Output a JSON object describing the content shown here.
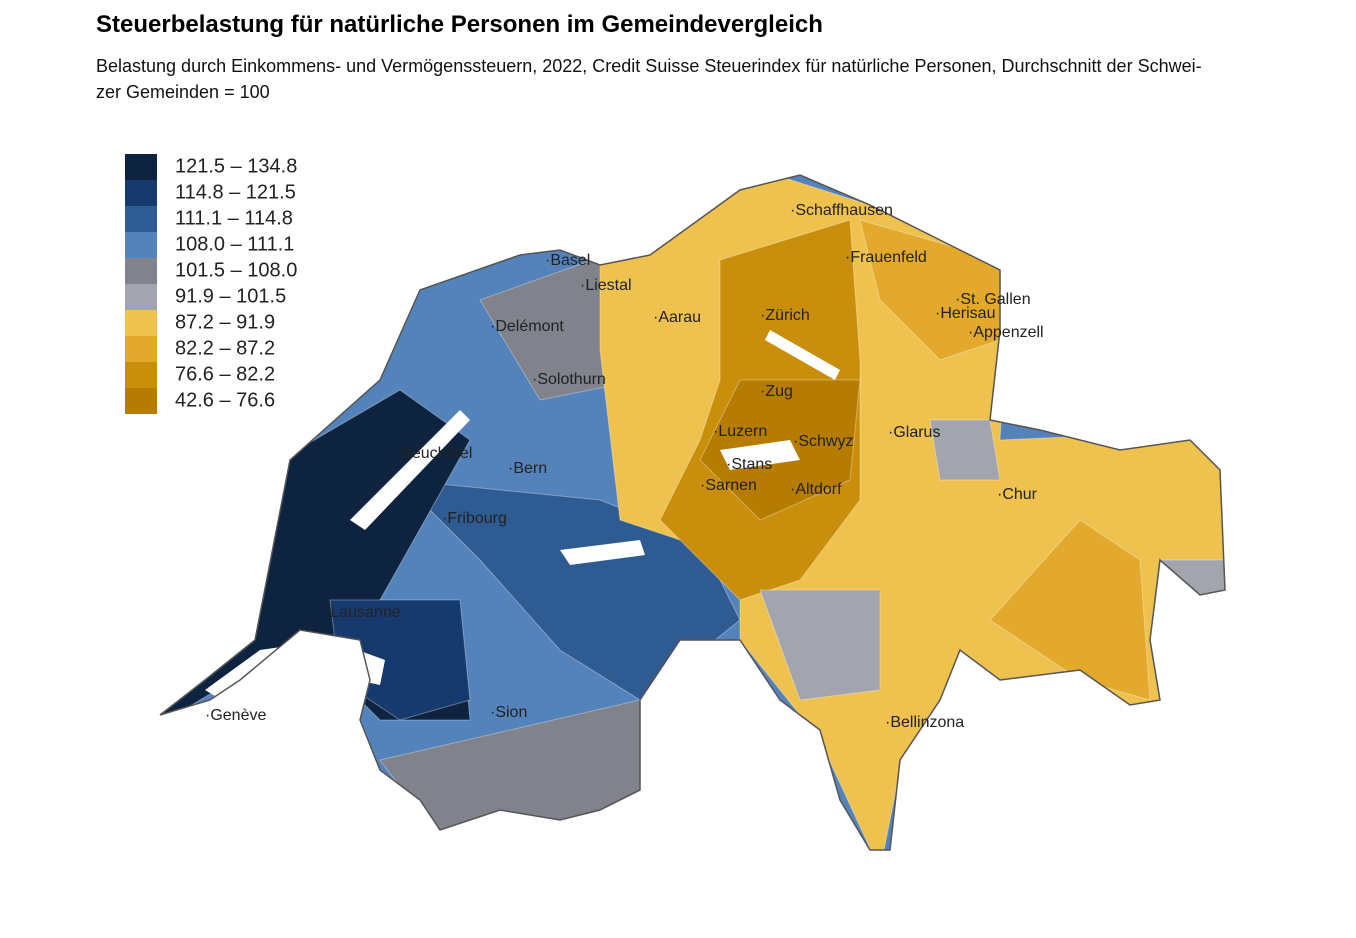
{
  "header": {
    "title": "Steuerbelastung für natürliche Personen im Gemeindevergleich",
    "subtitle": [
      "Belastung durch Einkommens- und Vermögenssteuern, 2022, Credit Suisse Steuerindex für natürliche Personen, Durchschnitt der Schwei-",
      "zer Gemeinden = 100"
    ]
  },
  "legend": [
    {
      "label": "121.5 – 134.8",
      "color": "#0d2340"
    },
    {
      "label": "114.8 – 121.5",
      "color": "#163a6e"
    },
    {
      "label": "111.1 – 114.8",
      "color": "#2f5b93"
    },
    {
      "label": "108.0 – 111.1",
      "color": "#5483bb"
    },
    {
      "label": "101.5 – 108.0",
      "color": "#80828c"
    },
    {
      "label": "91.9 – 101.5",
      "color": "#a3a5ae"
    },
    {
      "label": "87.2 – 91.9",
      "color": "#efc24f"
    },
    {
      "label": "82.2 – 87.2",
      "color": "#e2a92d"
    },
    {
      "label": "76.6 – 82.2",
      "color": "#c98f0c"
    },
    {
      "label": "42.6 – 76.6",
      "color": "#b57c00"
    }
  ],
  "cities": [
    "Schaffhausen",
    "Basel",
    "Liestal",
    "Frauenfeld",
    "Delémont",
    "Aarau",
    "Zürich",
    "St. Gallen",
    "Herisau",
    "Appenzell",
    "Solothurn",
    "Zug",
    "Neuchâtel",
    "Luzern",
    "Schwyz",
    "Glarus",
    "Bern",
    "Stans",
    "Sarnen",
    "Altdorf",
    "Chur",
    "Fribourg",
    "Lausanne",
    "Genève",
    "Sion",
    "Bellinzona"
  ]
}
